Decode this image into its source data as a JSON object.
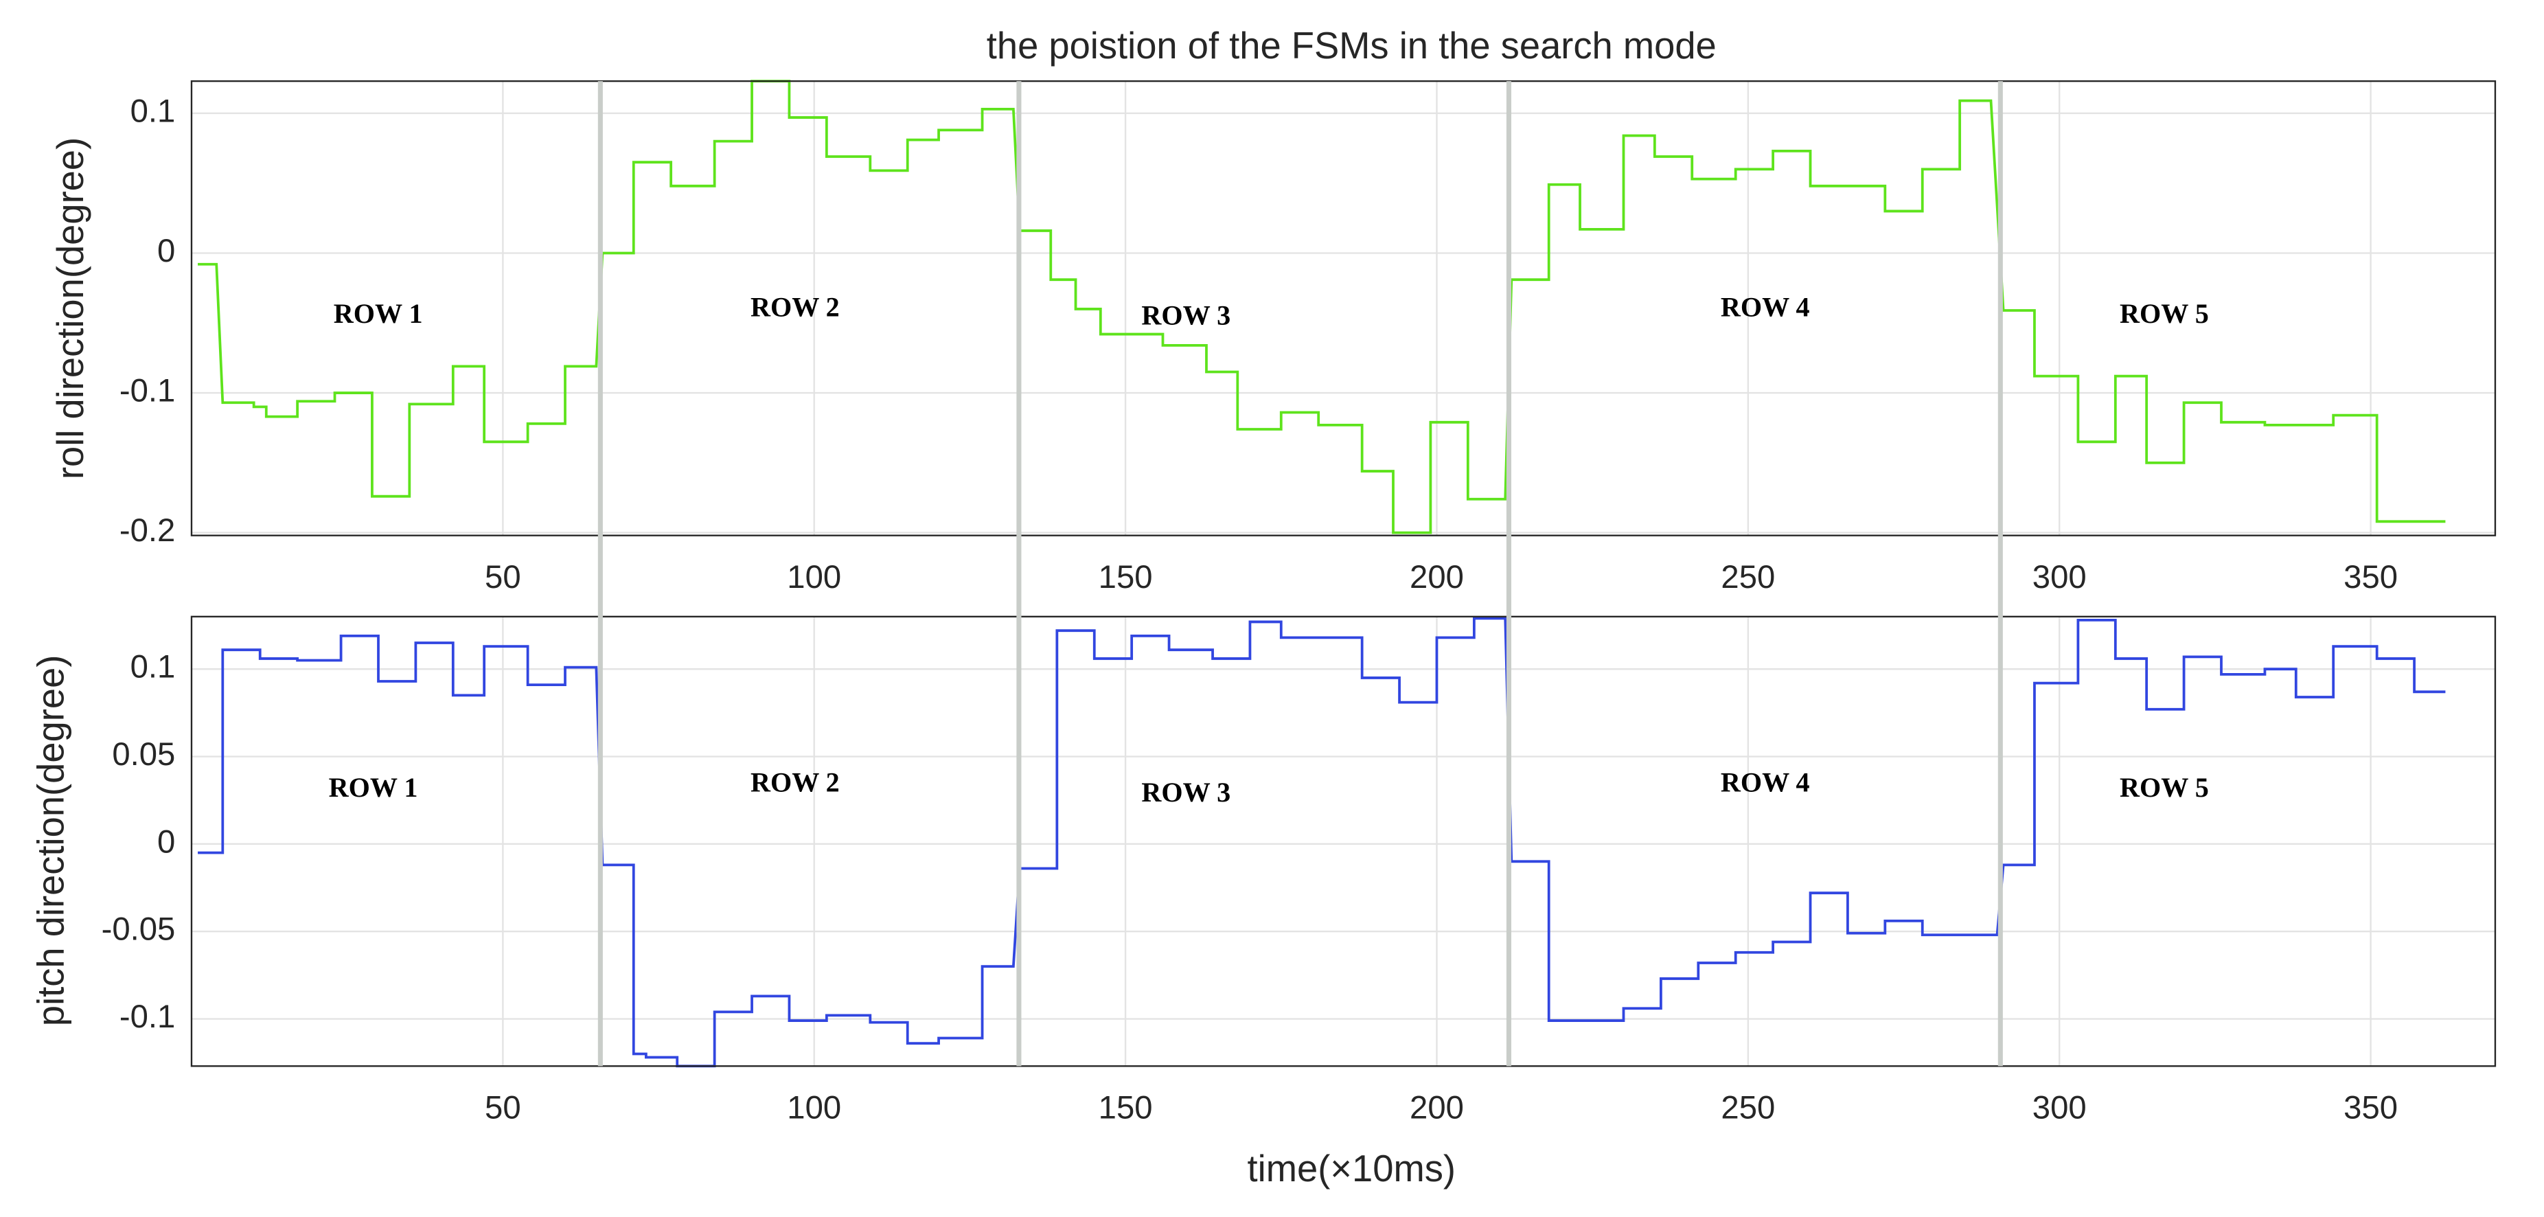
{
  "chart_data": [
    {
      "type": "line",
      "title": "the poistion of the FSMs in the search mode",
      "ylabel": "roll direction(degree)",
      "x": [
        1,
        4,
        5,
        10,
        10,
        12,
        12,
        17,
        17,
        23,
        23,
        29,
        29,
        35,
        35,
        42,
        42,
        47,
        47,
        54,
        54,
        60,
        60,
        65,
        66,
        71,
        71,
        77,
        77,
        84,
        84,
        90,
        90,
        96,
        96,
        102,
        102,
        109,
        109,
        115,
        115,
        120,
        120,
        127,
        127,
        132,
        133,
        138,
        138,
        142,
        142,
        146,
        146,
        156,
        156,
        163,
        163,
        168,
        168,
        175,
        175,
        181,
        181,
        188,
        188,
        193,
        193,
        199,
        199,
        205,
        205,
        211,
        212,
        218,
        218,
        223,
        223,
        230,
        230,
        235,
        235,
        241,
        241,
        248,
        248,
        254,
        254,
        260,
        260,
        272,
        272,
        278,
        278,
        284,
        284,
        289,
        291,
        296,
        296,
        303,
        303,
        309,
        309,
        314,
        314,
        320,
        320,
        326,
        326,
        333,
        333,
        344,
        344,
        351,
        351,
        362
      ],
      "series": [
        {
          "color": "#5ee31c",
          "values": [
            -0.008,
            -0.008,
            -0.107,
            -0.107,
            -0.11,
            -0.11,
            -0.117,
            -0.117,
            -0.106,
            -0.106,
            -0.1,
            -0.1,
            -0.174,
            -0.174,
            -0.108,
            -0.108,
            -0.081,
            -0.081,
            -0.135,
            -0.135,
            -0.122,
            -0.122,
            -0.081,
            -0.081,
            0,
            0,
            0.065,
            0.065,
            0.048,
            0.048,
            0.08,
            0.08,
            0.123,
            0.123,
            0.097,
            0.097,
            0.069,
            0.069,
            0.059,
            0.059,
            0.081,
            0.081,
            0.088,
            0.088,
            0.103,
            0.103,
            0.016,
            0.016,
            -0.019,
            -0.019,
            -0.04,
            -0.04,
            -0.058,
            -0.058,
            -0.066,
            -0.066,
            -0.085,
            -0.085,
            -0.126,
            -0.126,
            -0.114,
            -0.114,
            -0.123,
            -0.123,
            -0.156,
            -0.156,
            -0.2,
            -0.2,
            -0.121,
            -0.121,
            -0.176,
            -0.176,
            -0.019,
            -0.019,
            0.049,
            0.049,
            0.017,
            0.017,
            0.084,
            0.084,
            0.069,
            0.069,
            0.053,
            0.053,
            0.06,
            0.06,
            0.073,
            0.073,
            0.048,
            0.048,
            0.03,
            0.03,
            0.06,
            0.06,
            0.109,
            0.109,
            -0.041,
            -0.041,
            -0.088,
            -0.088,
            -0.135,
            -0.135,
            -0.088,
            -0.088,
            -0.15,
            -0.15,
            -0.107,
            -0.107,
            -0.121,
            -0.121,
            -0.123,
            -0.123,
            -0.116,
            -0.116,
            -0.192,
            -0.192
          ]
        }
      ],
      "xlim": [
        0,
        370
      ],
      "xticks": [
        50,
        100,
        150,
        200,
        250,
        300,
        350
      ],
      "ylim": [
        -0.202,
        0.123
      ],
      "yticks": [
        -0.2,
        -0.1,
        0,
        0.1
      ],
      "grid": true,
      "annotations": [
        "ROW 1",
        "ROW 2",
        "ROW 3",
        "ROW 4",
        "ROW 5"
      ]
    },
    {
      "type": "line",
      "xlabel": "time(×10ms)",
      "ylabel": "pitch direction(degree)",
      "x": [
        1,
        5,
        5,
        11,
        11,
        17,
        17,
        24,
        24,
        30,
        30,
        36,
        36,
        42,
        42,
        47,
        47,
        54,
        54,
        60,
        60,
        65,
        66,
        71,
        71,
        73,
        73,
        78,
        78,
        84,
        84,
        90,
        90,
        96,
        96,
        102,
        102,
        109,
        109,
        115,
        115,
        120,
        120,
        127,
        127,
        132,
        133,
        139,
        139,
        145,
        145,
        151,
        151,
        157,
        157,
        164,
        164,
        170,
        170,
        175,
        175,
        188,
        188,
        194,
        194,
        200,
        200,
        206,
        206,
        211,
        212,
        218,
        218,
        230,
        230,
        236,
        236,
        242,
        242,
        248,
        248,
        254,
        254,
        260,
        260,
        266,
        266,
        272,
        272,
        278,
        278,
        290,
        291,
        296,
        296,
        303,
        303,
        309,
        309,
        314,
        314,
        320,
        320,
        326,
        326,
        333,
        333,
        338,
        338,
        344,
        344,
        351,
        351,
        357,
        357,
        362
      ],
      "series": [
        {
          "color": "#3146e0",
          "values": [
            -0.005,
            -0.005,
            0.111,
            0.111,
            0.106,
            0.106,
            0.105,
            0.105,
            0.119,
            0.119,
            0.093,
            0.093,
            0.115,
            0.115,
            0.085,
            0.085,
            0.113,
            0.113,
            0.091,
            0.091,
            0.101,
            0.101,
            -0.012,
            -0.012,
            -0.12,
            -0.12,
            -0.122,
            -0.122,
            -0.127,
            -0.127,
            -0.096,
            -0.096,
            -0.087,
            -0.087,
            -0.101,
            -0.101,
            -0.098,
            -0.098,
            -0.102,
            -0.102,
            -0.114,
            -0.114,
            -0.111,
            -0.111,
            -0.07,
            -0.07,
            -0.014,
            -0.014,
            0.122,
            0.122,
            0.106,
            0.106,
            0.119,
            0.119,
            0.111,
            0.111,
            0.106,
            0.106,
            0.127,
            0.127,
            0.118,
            0.118,
            0.095,
            0.095,
            0.081,
            0.081,
            0.118,
            0.118,
            0.129,
            0.129,
            -0.01,
            -0.01,
            -0.101,
            -0.101,
            -0.094,
            -0.094,
            -0.077,
            -0.077,
            -0.068,
            -0.068,
            -0.062,
            -0.062,
            -0.056,
            -0.056,
            -0.028,
            -0.028,
            -0.051,
            -0.051,
            -0.044,
            -0.044,
            -0.052,
            -0.052,
            -0.012,
            -0.012,
            0.092,
            0.092,
            0.128,
            0.128,
            0.106,
            0.106,
            0.077,
            0.077,
            0.107,
            0.107,
            0.097,
            0.097,
            0.1,
            0.1,
            0.084,
            0.084,
            0.113,
            0.113,
            0.106,
            0.106,
            0.087,
            0.087
          ]
        }
      ],
      "xlim": [
        0,
        370
      ],
      "xticks": [
        50,
        100,
        150,
        200,
        250,
        300,
        350
      ],
      "ylim": [
        -0.127,
        0.13
      ],
      "yticks": [
        -0.1,
        -0.05,
        0,
        0.05,
        0.1
      ],
      "grid": true,
      "annotations": [
        "ROW 1",
        "ROW 2",
        "ROW 3",
        "ROW 4",
        "ROW 5"
      ]
    }
  ]
}
